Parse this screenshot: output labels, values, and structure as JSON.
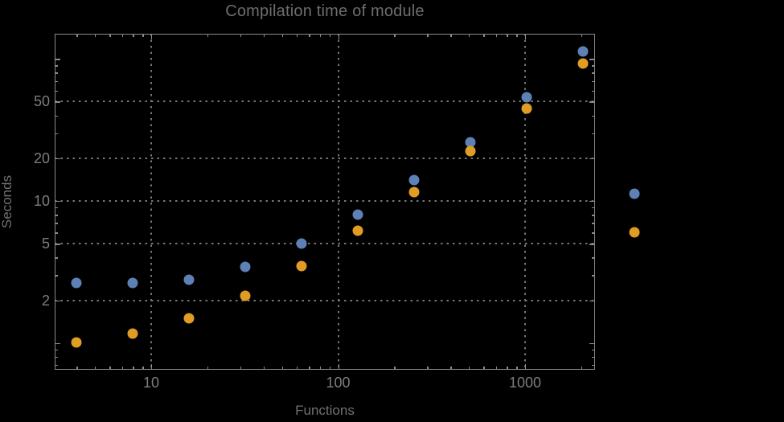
{
  "title": "Compilation time of module",
  "colors": {
    "background": "#000000",
    "frame": "#8b8b8b",
    "grid": "#767676",
    "tick_text": "#7d7d7d",
    "series1_blue": "#5E81B5",
    "series2_orange": "#E19C24"
  },
  "chart_data": {
    "type": "scatter",
    "title": "Compilation time of module",
    "xlabel": "Functions",
    "ylabel": "Seconds",
    "x_scale": "log",
    "y_scale": "log",
    "x_range": [
      3.05,
      2370
    ],
    "y_range": [
      0.65,
      150
    ],
    "grid": "dotted",
    "x_tick_labels": [
      "10",
      "100",
      "1000"
    ],
    "x_tick_values": [
      10,
      100,
      1000
    ],
    "y_tick_labels": [
      "50",
      "20",
      "10",
      "5",
      "2"
    ],
    "y_tick_values": [
      50,
      20,
      10,
      5,
      2
    ],
    "x": [
      4,
      8,
      16,
      32,
      64,
      128,
      256,
      512,
      1024,
      2048
    ],
    "series": [
      {
        "name": "blue",
        "color": "#5E81B5",
        "values": [
          2.65,
          2.65,
          2.8,
          3.45,
          5.0,
          8.0,
          14.0,
          26.0,
          53.5,
          113.0
        ]
      },
      {
        "name": "orange",
        "color": "#E19C24",
        "values": [
          1.01,
          1.16,
          1.5,
          2.15,
          3.5,
          6.2,
          11.5,
          22.4,
          45.0,
          93.0
        ]
      }
    ],
    "legend": {
      "position": "right-outside",
      "items": [
        {
          "label": "",
          "color": "#5E81B5"
        },
        {
          "label": "",
          "color": "#E19C24"
        }
      ]
    }
  }
}
